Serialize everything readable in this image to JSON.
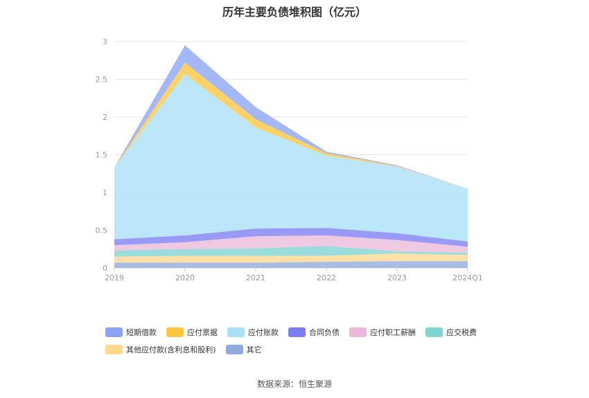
{
  "chart_data": {
    "type": "area",
    "stacked": true,
    "title": "历年主要负债堆积图（亿元）",
    "categories": [
      "2019",
      "2020",
      "2021",
      "2022",
      "2023",
      "2024Q1"
    ],
    "ylim": [
      0,
      3
    ],
    "yticks": [
      "0",
      "0.5",
      "1",
      "1.5",
      "2",
      "2.5",
      "3"
    ],
    "grid": true,
    "legend_position": "bottom",
    "series": [
      {
        "name": "其它",
        "color": "#8faadc",
        "values": [
          0.07,
          0.07,
          0.07,
          0.08,
          0.09,
          0.09
        ]
      },
      {
        "name": "其他应付款(含利息和股利)",
        "color": "#ffd98e",
        "values": [
          0.08,
          0.09,
          0.09,
          0.08,
          0.1,
          0.08
        ]
      },
      {
        "name": "应交税费",
        "color": "#7fd4d4",
        "values": [
          0.08,
          0.09,
          0.1,
          0.13,
          0.03,
          0.03
        ]
      },
      {
        "name": "应付职工薪酬",
        "color": "#eab8d8",
        "values": [
          0.07,
          0.09,
          0.16,
          0.14,
          0.15,
          0.08
        ]
      },
      {
        "name": "合同负债",
        "color": "#7b7ef2",
        "values": [
          0.08,
          0.09,
          0.1,
          0.1,
          0.09,
          0.07
        ]
      },
      {
        "name": "应付账款",
        "color": "#a9dff7",
        "values": [
          0.95,
          2.14,
          1.34,
          0.96,
          0.88,
          0.7
        ]
      },
      {
        "name": "应付票据",
        "color": "#ffc53d",
        "values": [
          0.0,
          0.15,
          0.11,
          0.03,
          0.01,
          0.0
        ]
      },
      {
        "name": "短期借款",
        "color": "#8aa3f5",
        "values": [
          0.0,
          0.23,
          0.16,
          0.02,
          0.01,
          0.0
        ]
      }
    ],
    "legend_order": [
      "短期借款",
      "应付票据",
      "应付账款",
      "合同负债",
      "应付职工薪酬",
      "应交税费",
      "其他应付款(含利息和股利)",
      "其它"
    ]
  },
  "source": "数据来源：恒生聚源"
}
